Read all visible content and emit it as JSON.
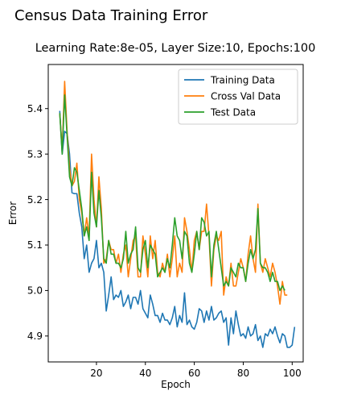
{
  "figure": {
    "suptitle": "Census Data Training Error"
  },
  "chart_data": {
    "type": "line",
    "title": "Learning Rate:8e-05, Layer Size:10, Epochs:100",
    "xlabel": "Epoch",
    "ylabel": "Error",
    "xlim": [
      0.3,
      104.5
    ],
    "ylim": [
      4.843,
      5.497
    ],
    "xticks": [
      20,
      40,
      60,
      80,
      100
    ],
    "yticks": [
      4.9,
      5.0,
      5.1,
      5.2,
      5.3,
      5.4
    ],
    "xtick_labels": [
      "20",
      "40",
      "60",
      "80",
      "100"
    ],
    "ytick_labels": [
      "4.9",
      "5.0",
      "5.1",
      "5.2",
      "5.3",
      "5.4"
    ],
    "grid": false,
    "legend_position": "top-right",
    "x_start": 5,
    "series": [
      {
        "name": "Training Data",
        "color": "#1f77b4",
        "values": [
          5.395,
          5.3,
          5.35,
          5.345,
          5.3,
          5.215,
          5.213,
          5.213,
          5.17,
          5.14,
          5.07,
          5.1,
          5.04,
          5.06,
          5.07,
          5.11,
          5.05,
          5.06,
          5.04,
          4.955,
          4.99,
          5.03,
          4.98,
          4.99,
          4.985,
          5.0,
          4.965,
          4.975,
          4.99,
          4.96,
          4.985,
          4.985,
          4.97,
          5.0,
          4.96,
          4.95,
          4.94,
          4.99,
          4.97,
          4.945,
          4.945,
          4.93,
          4.95,
          4.935,
          4.935,
          4.925,
          4.94,
          4.965,
          4.92,
          4.945,
          4.93,
          4.995,
          4.925,
          4.935,
          4.92,
          4.915,
          4.93,
          4.96,
          4.955,
          4.93,
          4.955,
          4.935,
          4.965,
          4.935,
          4.94,
          4.95,
          4.955,
          4.93,
          4.94,
          4.88,
          4.94,
          4.905,
          4.955,
          4.925,
          4.9,
          4.905,
          4.895,
          4.92,
          4.9,
          4.905,
          4.925,
          4.89,
          4.9,
          4.875,
          4.905,
          4.9,
          4.915,
          4.905,
          4.92,
          4.9,
          4.885,
          4.905,
          4.9,
          4.875,
          4.875,
          4.88,
          4.92
        ]
      },
      {
        "name": "Cross Val Data",
        "color": "#ff7f0e",
        "values": [
          5.39,
          5.31,
          5.46,
          5.35,
          5.27,
          5.23,
          5.24,
          5.28,
          5.2,
          5.17,
          5.12,
          5.16,
          5.12,
          5.3,
          5.2,
          5.14,
          5.25,
          5.18,
          5.06,
          5.07,
          5.11,
          5.09,
          5.09,
          5.06,
          5.08,
          5.04,
          5.08,
          5.1,
          5.03,
          5.07,
          5.11,
          5.12,
          5.03,
          5.03,
          5.12,
          5.08,
          5.03,
          5.12,
          5.07,
          5.11,
          5.04,
          5.03,
          5.06,
          5.04,
          5.08,
          5.03,
          5.07,
          5.12,
          5.03,
          5.06,
          5.04,
          5.16,
          5.13,
          5.09,
          5.04,
          5.11,
          5.13,
          5.09,
          5.13,
          5.13,
          5.19,
          5.12,
          5.01,
          5.09,
          5.12,
          5.11,
          5.13,
          4.99,
          5.03,
          5.01,
          5.06,
          5.01,
          5.01,
          5.04,
          5.07,
          5.05,
          5.02,
          5.08,
          5.12,
          5.07,
          5.04,
          5.19,
          5.06,
          5.04,
          5.07,
          5.05,
          5.03,
          5.06,
          5.04,
          5.01,
          4.97,
          5.02,
          4.99,
          4.99
        ]
      },
      {
        "name": "Test Data",
        "color": "#2ca02c",
        "values": [
          5.39,
          5.3,
          5.43,
          5.34,
          5.25,
          5.23,
          5.27,
          5.26,
          5.22,
          5.18,
          5.12,
          5.14,
          5.11,
          5.26,
          5.17,
          5.14,
          5.22,
          5.16,
          5.07,
          5.06,
          5.11,
          5.08,
          5.08,
          5.06,
          5.06,
          5.05,
          5.07,
          5.13,
          5.06,
          5.08,
          5.09,
          5.14,
          5.05,
          5.04,
          5.09,
          5.11,
          5.05,
          5.1,
          5.09,
          5.08,
          5.03,
          5.04,
          5.05,
          5.04,
          5.07,
          5.05,
          5.1,
          5.16,
          5.12,
          5.11,
          5.07,
          5.13,
          5.12,
          5.06,
          5.04,
          5.08,
          5.13,
          5.09,
          5.16,
          5.15,
          5.12,
          5.13,
          5.03,
          5.1,
          5.13,
          5.09,
          5.05,
          5.01,
          5.02,
          5.01,
          5.05,
          5.04,
          5.03,
          5.06,
          5.05,
          5.05,
          5.02,
          5.06,
          5.09,
          5.07,
          5.09,
          5.18,
          5.06,
          5.05,
          5.05,
          5.04,
          5.02,
          5.04,
          5.02,
          5.02,
          5.0,
          5.01,
          5.0
        ]
      }
    ]
  }
}
